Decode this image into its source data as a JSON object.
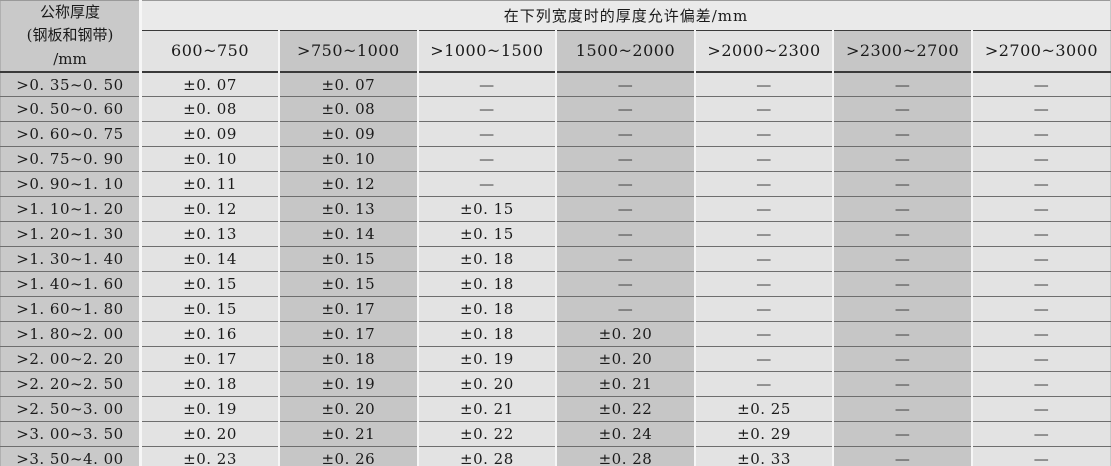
{
  "colors": {
    "light": "#e3e3e3",
    "dark": "#c6c6c6",
    "rowhead": "#c9c9c9",
    "spanbg": "#eaeaea",
    "line": "#6e6e6e",
    "text": "#1a1a1a"
  },
  "table": {
    "corner_header": [
      "公称厚度",
      "(钢板和钢带)",
      "/mm"
    ],
    "span_header": "在下列宽度时的厚度允许偏差/mm",
    "width_headers": [
      "600~750",
      ">750~1000",
      ">1000~1500",
      "1500~2000",
      ">2000~2300",
      ">2300~2700",
      ">2700~3000"
    ],
    "dash": "—",
    "rows": [
      {
        "thickness": ">0. 35~0. 50",
        "values": [
          "±0. 07",
          "±0. 07",
          "—",
          "—",
          "—",
          "—",
          "—"
        ]
      },
      {
        "thickness": ">0. 50~0. 60",
        "values": [
          "±0. 08",
          "±0. 08",
          "—",
          "—",
          "—",
          "—",
          "—"
        ]
      },
      {
        "thickness": ">0. 60~0. 75",
        "values": [
          "±0. 09",
          "±0. 09",
          "—",
          "—",
          "—",
          "—",
          "—"
        ]
      },
      {
        "thickness": ">0. 75~0. 90",
        "values": [
          "±0. 10",
          "±0. 10",
          "—",
          "—",
          "—",
          "—",
          "—"
        ]
      },
      {
        "thickness": ">0. 90~1. 10",
        "values": [
          "±0. 11",
          "±0. 12",
          "—",
          "—",
          "—",
          "—",
          "—"
        ]
      },
      {
        "thickness": ">1. 10~1. 20",
        "values": [
          "±0. 12",
          "±0. 13",
          "±0. 15",
          "—",
          "—",
          "—",
          "—"
        ]
      },
      {
        "thickness": ">1. 20~1. 30",
        "values": [
          "±0. 13",
          "±0. 14",
          "±0. 15",
          "—",
          "—",
          "—",
          "—"
        ]
      },
      {
        "thickness": ">1. 30~1. 40",
        "values": [
          "±0. 14",
          "±0. 15",
          "±0. 18",
          "—",
          "—",
          "—",
          "—"
        ]
      },
      {
        "thickness": ">1. 40~1. 60",
        "values": [
          "±0. 15",
          "±0. 15",
          "±0. 18",
          "—",
          "—",
          "—",
          "—"
        ]
      },
      {
        "thickness": ">1. 60~1. 80",
        "values": [
          "±0. 15",
          "±0. 17",
          "±0. 18",
          "—",
          "—",
          "—",
          "—"
        ]
      },
      {
        "thickness": ">1. 80~2. 00",
        "values": [
          "±0. 16",
          "±0. 17",
          "±0. 18",
          "±0. 20",
          "—",
          "—",
          "—"
        ]
      },
      {
        "thickness": ">2. 00~2. 20",
        "values": [
          "±0. 17",
          "±0. 18",
          "±0. 19",
          "±0. 20",
          "—",
          "—",
          "—"
        ]
      },
      {
        "thickness": ">2. 20~2. 50",
        "values": [
          "±0. 18",
          "±0. 19",
          "±0. 20",
          "±0. 21",
          "—",
          "—",
          "—"
        ]
      },
      {
        "thickness": ">2. 50~3. 00",
        "values": [
          "±0. 19",
          "±0. 20",
          "±0. 21",
          "±0. 22",
          "±0. 25",
          "—",
          "—"
        ]
      },
      {
        "thickness": ">3. 00~3. 50",
        "values": [
          "±0. 20",
          "±0. 21",
          "±0. 22",
          "±0. 24",
          "±0. 29",
          "—",
          "—"
        ]
      },
      {
        "thickness": ">3. 50~4. 00",
        "values": [
          "±0. 23",
          "±0. 26",
          "±0. 28",
          "±0. 28",
          "±0. 33",
          "—",
          "—"
        ]
      }
    ]
  }
}
